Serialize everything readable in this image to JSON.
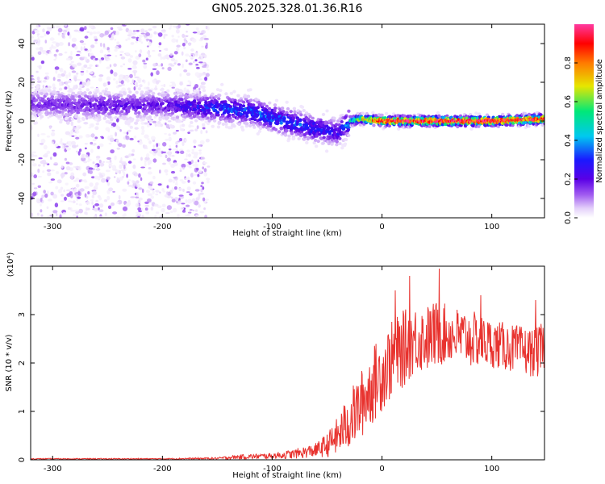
{
  "title": "GN05.2025.328.01.36.R16",
  "colors": {
    "snr_line": "#e8322e",
    "spectrogram_colormap": [
      "#ffffff",
      "#e3cffa",
      "#a05af0",
      "#5a00e6",
      "#1a1aff",
      "#00c8f0",
      "#00e878",
      "#e6e600",
      "#ff7a00",
      "#ff0000",
      "#ff3aa0"
    ]
  },
  "chart_data": [
    {
      "type": "heatmap",
      "name": "spectrogram",
      "xlabel": "Height of straight line (km)",
      "ylabel": "Frequency (Hz)",
      "xlim": [
        -320,
        148
      ],
      "ylim": [
        -50,
        50
      ],
      "xticks": [
        -300,
        -200,
        -100,
        0,
        100
      ],
      "xtick_labels": [
        "-300",
        "-200",
        "-100",
        "0",
        "100"
      ],
      "yticks": [
        -40,
        -20,
        0,
        20,
        40
      ],
      "ytick_labels": [
        "-40",
        "-20",
        "0",
        "20",
        "40"
      ],
      "colorbar": {
        "label": "Normalized spectral amplitude",
        "range": [
          0,
          1
        ],
        "ticks": [
          0.0,
          0.2,
          0.4,
          0.6,
          0.8
        ],
        "tick_labels": [
          "0.0",
          "0.2",
          "0.4",
          "0.6",
          "0.8"
        ]
      },
      "ridge": {
        "description_points_x": [
          -320,
          -250,
          -200,
          -160,
          -120,
          -90,
          -60,
          -40,
          -30,
          -20,
          0,
          50,
          100,
          148
        ],
        "frequency_hz": [
          9,
          8,
          8,
          7,
          5,
          0,
          -4,
          -6,
          0,
          1,
          0,
          0,
          0,
          1
        ],
        "peak_amplitude": [
          0.25,
          0.3,
          0.3,
          0.4,
          0.45,
          0.45,
          0.4,
          0.35,
          0.5,
          0.7,
          0.95,
          0.98,
          0.98,
          0.9
        ]
      },
      "noise_region_x": [
        -320,
        -158
      ]
    },
    {
      "type": "line",
      "name": "snr",
      "xlabel": "Height of straight line (km)",
      "ylabel": "SNR (10 * v/v)",
      "y_multiplier_label": "(x10⁴)",
      "xlim": [
        -320,
        148
      ],
      "ylim": [
        0,
        4
      ],
      "xticks": [
        -300,
        -200,
        -100,
        0,
        100
      ],
      "xtick_labels": [
        "-300",
        "-200",
        "-100",
        "0",
        "100"
      ],
      "yticks": [
        0,
        1,
        2,
        3
      ],
      "ytick_labels": [
        "0",
        "1",
        "2",
        "3"
      ],
      "envelope": {
        "x": [
          -320,
          -200,
          -150,
          -130,
          -100,
          -80,
          -60,
          -50,
          -40,
          -30,
          -20,
          -10,
          0,
          10,
          20,
          30,
          40,
          50,
          60,
          80,
          100,
          120,
          140,
          148
        ],
        "mean": [
          0.02,
          0.02,
          0.03,
          0.06,
          0.08,
          0.12,
          0.2,
          0.3,
          0.5,
          0.8,
          1.1,
          1.5,
          1.8,
          2.1,
          2.3,
          2.5,
          2.5,
          2.6,
          2.6,
          2.5,
          2.4,
          2.3,
          2.2,
          2.3
        ],
        "spread": [
          0.01,
          0.01,
          0.02,
          0.05,
          0.06,
          0.1,
          0.15,
          0.25,
          0.4,
          0.6,
          0.7,
          0.8,
          0.8,
          0.8,
          0.8,
          0.7,
          0.7,
          0.7,
          0.6,
          0.6,
          0.5,
          0.5,
          0.5,
          0.6
        ],
        "max_spikes": [
          {
            "x": 25,
            "y": 3.8
          },
          {
            "x": 52,
            "y": 3.95
          },
          {
            "x": 12,
            "y": 3.5
          },
          {
            "x": 90,
            "y": 3.4
          },
          {
            "x": 140,
            "y": 3.3
          }
        ]
      }
    }
  ]
}
